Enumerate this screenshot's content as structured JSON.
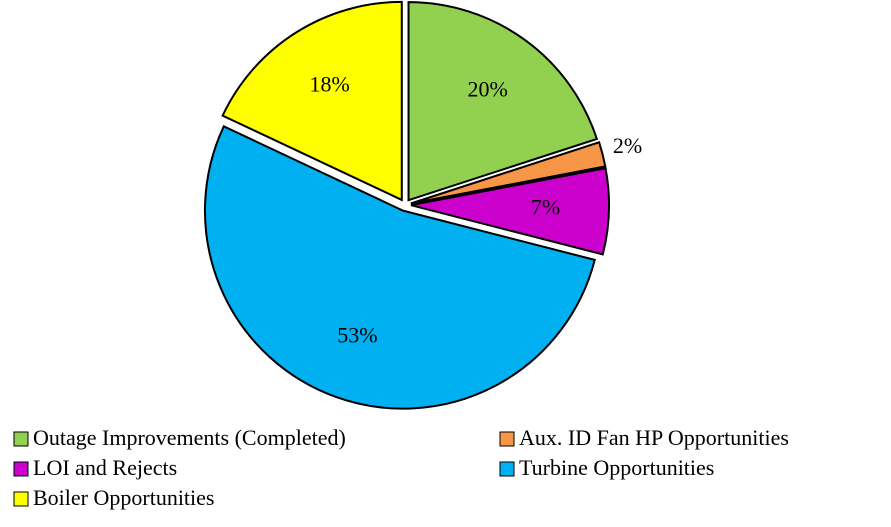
{
  "chart_data": {
    "type": "pie",
    "categories": [
      "Outage Improvements (Completed)",
      "Aux. ID Fan HP Opportunities",
      "LOI and Rejects",
      "Turbine Opportunities",
      "Boiler Opportunities"
    ],
    "values": [
      20,
      2,
      7,
      53,
      18
    ],
    "value_labels": [
      "20%",
      "2%",
      "7%",
      "53%",
      "18%"
    ],
    "colors": [
      "#92d050",
      "#f79646",
      "#cc00cc",
      "#00b0f0",
      "#ffff00"
    ]
  }
}
